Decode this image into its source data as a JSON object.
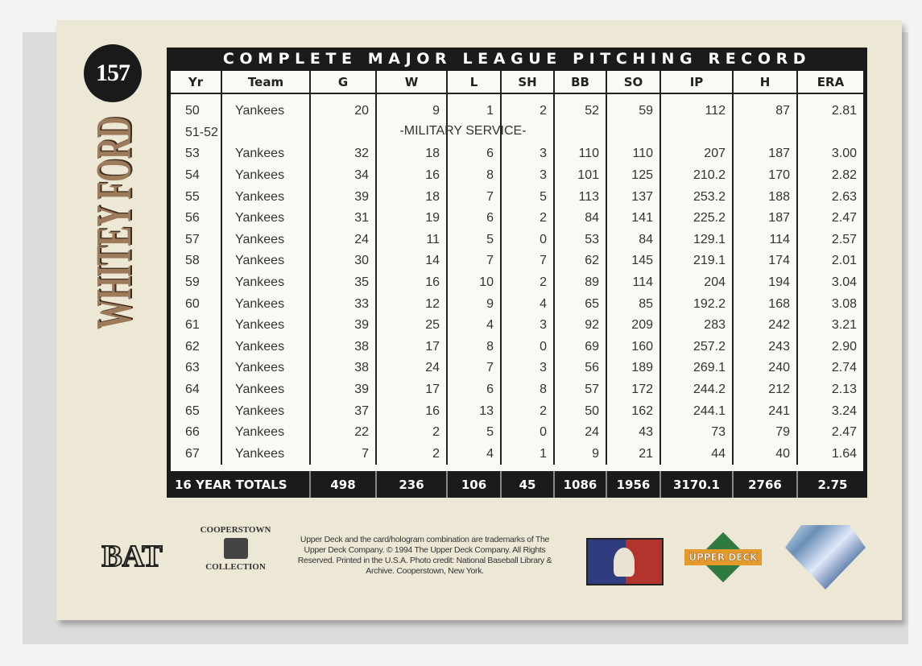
{
  "card": {
    "number": "157",
    "player_name": "WHITEY FORD",
    "title": "COMPLETE MAJOR LEAGUE PITCHING RECORD"
  },
  "columns": [
    "Yr",
    "Team",
    "G",
    "W",
    "L",
    "SH",
    "BB",
    "SO",
    "IP",
    "H",
    "ERA"
  ],
  "rows": [
    [
      "50",
      "Yankees",
      "20",
      "9",
      "1",
      "2",
      "52",
      "59",
      "112",
      "87",
      "2.81"
    ],
    [
      "51-52",
      "",
      "",
      "",
      "",
      "",
      "",
      "",
      "",
      "",
      ""
    ],
    [
      "53",
      "Yankees",
      "32",
      "18",
      "6",
      "3",
      "110",
      "110",
      "207",
      "187",
      "3.00"
    ],
    [
      "54",
      "Yankees",
      "34",
      "16",
      "8",
      "3",
      "101",
      "125",
      "210.2",
      "170",
      "2.82"
    ],
    [
      "55",
      "Yankees",
      "39",
      "18",
      "7",
      "5",
      "113",
      "137",
      "253.2",
      "188",
      "2.63"
    ],
    [
      "56",
      "Yankees",
      "31",
      "19",
      "6",
      "2",
      "84",
      "141",
      "225.2",
      "187",
      "2.47"
    ],
    [
      "57",
      "Yankees",
      "24",
      "11",
      "5",
      "0",
      "53",
      "84",
      "129.1",
      "114",
      "2.57"
    ],
    [
      "58",
      "Yankees",
      "30",
      "14",
      "7",
      "7",
      "62",
      "145",
      "219.1",
      "174",
      "2.01"
    ],
    [
      "59",
      "Yankees",
      "35",
      "16",
      "10",
      "2",
      "89",
      "114",
      "204",
      "194",
      "3.04"
    ],
    [
      "60",
      "Yankees",
      "33",
      "12",
      "9",
      "4",
      "65",
      "85",
      "192.2",
      "168",
      "3.08"
    ],
    [
      "61",
      "Yankees",
      "39",
      "25",
      "4",
      "3",
      "92",
      "209",
      "283",
      "242",
      "3.21"
    ],
    [
      "62",
      "Yankees",
      "38",
      "17",
      "8",
      "0",
      "69",
      "160",
      "257.2",
      "243",
      "2.90"
    ],
    [
      "63",
      "Yankees",
      "38",
      "24",
      "7",
      "3",
      "56",
      "189",
      "269.1",
      "240",
      "2.74"
    ],
    [
      "64",
      "Yankees",
      "39",
      "17",
      "6",
      "8",
      "57",
      "172",
      "244.2",
      "212",
      "2.13"
    ],
    [
      "65",
      "Yankees",
      "37",
      "16",
      "13",
      "2",
      "50",
      "162",
      "244.1",
      "241",
      "3.24"
    ],
    [
      "66",
      "Yankees",
      "22",
      "2",
      "5",
      "0",
      "24",
      "43",
      "73",
      "79",
      "2.47"
    ],
    [
      "67",
      "Yankees",
      "7",
      "2",
      "4",
      "1",
      "9",
      "21",
      "44",
      "40",
      "1.64"
    ]
  ],
  "military_note": "-MILITARY SERVICE-",
  "totals": [
    "16 YEAR TOTALS",
    "498",
    "236",
    "106",
    "45",
    "1086",
    "1956",
    "3170.1",
    "2766",
    "2.75"
  ],
  "legal": "Upper Deck and the card/hologram combination are trademarks of The Upper Deck Company. © 1994 The Upper Deck Company. All Rights Reserved. Printed in the U.S.A. Photo credit: National Baseball Library & Archive. Cooperstown, New York.",
  "logos": {
    "bat": "BAT",
    "cooperstown": [
      "COOPERSTOWN",
      "COLLECTION"
    ],
    "upper_deck": "UPPER DECK"
  }
}
